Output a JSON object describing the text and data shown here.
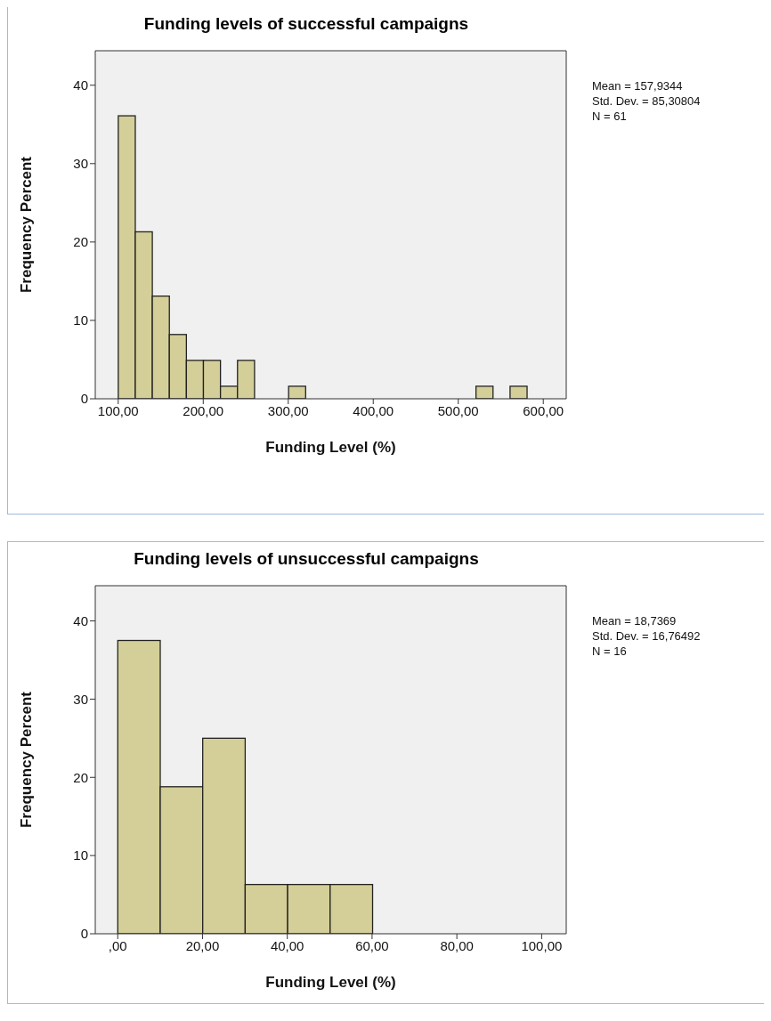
{
  "chart_data": [
    {
      "type": "histogram",
      "title": "Funding levels of successful campaigns",
      "xlabel": "Funding Level (%)",
      "ylabel": "Frequency Percent",
      "color": "#d4cf98",
      "bins": [
        100,
        120,
        140,
        160,
        180,
        200,
        220,
        240,
        260,
        280,
        300,
        320,
        340,
        360,
        380,
        400,
        420,
        440,
        460,
        480,
        500,
        520,
        540,
        560,
        580
      ],
      "values": [
        36.1,
        21.3,
        13.1,
        8.2,
        4.9,
        4.9,
        1.6,
        4.9,
        0,
        0,
        1.6,
        0,
        0,
        0,
        0,
        0,
        0,
        0,
        0,
        0,
        0,
        1.6,
        0,
        1.6
      ],
      "xlim": [
        73,
        627
      ],
      "ylim": [
        0,
        44.4
      ],
      "xticks": [
        {
          "value": 100,
          "label": "100,00"
        },
        {
          "value": 200,
          "label": "200,00"
        },
        {
          "value": 300,
          "label": "300,00"
        },
        {
          "value": 400,
          "label": "400,00"
        },
        {
          "value": 500,
          "label": "500,00"
        },
        {
          "value": 600,
          "label": "600,00"
        }
      ],
      "yticks": [
        0,
        10,
        20,
        30,
        40
      ],
      "annotations": [
        "Mean = 157,9344",
        "Std. Dev. = 85,30804",
        "N = 61"
      ]
    },
    {
      "type": "histogram",
      "title": "Funding levels of unsuccessful campaigns",
      "xlabel": "Funding Level (%)",
      "ylabel": "Frequency Percent",
      "color": "#d4cf98",
      "bins": [
        0,
        10,
        20,
        30,
        40,
        50,
        60
      ],
      "values": [
        37.5,
        18.8,
        25,
        6.3,
        6.3,
        6.3
      ],
      "xlim": [
        -5.3,
        105.8
      ],
      "ylim": [
        0,
        44.5
      ],
      "xticks": [
        {
          "value": 0,
          "label": ",00"
        },
        {
          "value": 20,
          "label": "20,00"
        },
        {
          "value": 40,
          "label": "40,00"
        },
        {
          "value": 60,
          "label": "60,00"
        },
        {
          "value": 80,
          "label": "80,00"
        },
        {
          "value": 100,
          "label": "100,00"
        }
      ],
      "yticks": [
        0,
        10,
        20,
        30,
        40
      ],
      "annotations": [
        "Mean = 18,7369",
        "Std. Dev. = 16,76492",
        "N = 16"
      ]
    }
  ]
}
